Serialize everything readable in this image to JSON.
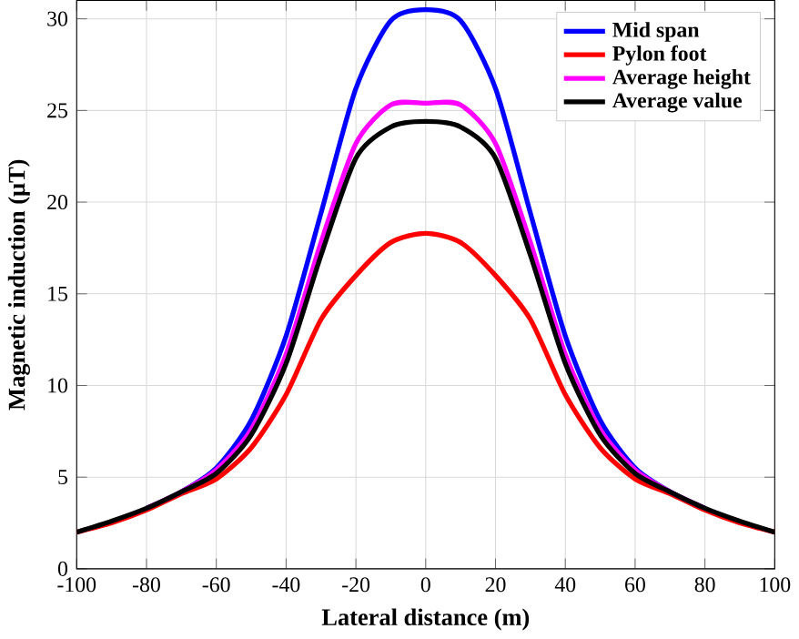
{
  "chart_data": {
    "type": "line",
    "xlabel": "Lateral distance (m)",
    "ylabel": "Magnetic induction (μT)",
    "x": [
      -100,
      -90,
      -80,
      -70,
      -60,
      -50,
      -40,
      -30,
      -20,
      -10,
      0,
      10,
      20,
      30,
      40,
      50,
      60,
      70,
      80,
      90,
      100
    ],
    "series": [
      {
        "name": "Mid span",
        "color": "#0000ff",
        "values": [
          null,
          null,
          3.3,
          4.2,
          5.5,
          8.1,
          12.7,
          19.4,
          26.2,
          29.9,
          30.5,
          29.9,
          26.2,
          19.4,
          12.7,
          8.1,
          5.5,
          4.2,
          3.3,
          null,
          null
        ]
      },
      {
        "name": "Pylon foot",
        "color": "#ff0000",
        "values": [
          2.0,
          2.5,
          3.2,
          4.1,
          4.9,
          6.6,
          9.5,
          13.6,
          16.0,
          17.8,
          18.3,
          17.8,
          16.0,
          13.6,
          9.5,
          6.6,
          4.9,
          4.1,
          3.2,
          2.5,
          2.0
        ]
      },
      {
        "name": "Average height",
        "color": "#ff00ff",
        "values": [
          null,
          null,
          3.3,
          4.2,
          5.4,
          7.6,
          11.7,
          17.8,
          23.2,
          25.3,
          25.4,
          25.3,
          23.2,
          17.8,
          11.7,
          7.6,
          5.4,
          4.2,
          3.3,
          null,
          null
        ]
      },
      {
        "name": "Average value",
        "color": "#000000",
        "values": [
          2.0,
          2.6,
          3.3,
          4.2,
          5.2,
          7.3,
          11.2,
          17.1,
          22.4,
          24.1,
          24.4,
          24.1,
          22.4,
          17.1,
          11.2,
          7.3,
          5.2,
          4.2,
          3.3,
          2.6,
          2.0
        ]
      }
    ],
    "xlim": [
      -100,
      100
    ],
    "ylim": [
      0,
      31
    ],
    "xticks": [
      -100,
      -80,
      -60,
      -40,
      -20,
      0,
      20,
      40,
      60,
      80,
      100
    ],
    "yticks": [
      0,
      5,
      10,
      15,
      20,
      25,
      30
    ],
    "grid": true,
    "legend": "top right",
    "marker": "none",
    "line_style": "solid"
  }
}
